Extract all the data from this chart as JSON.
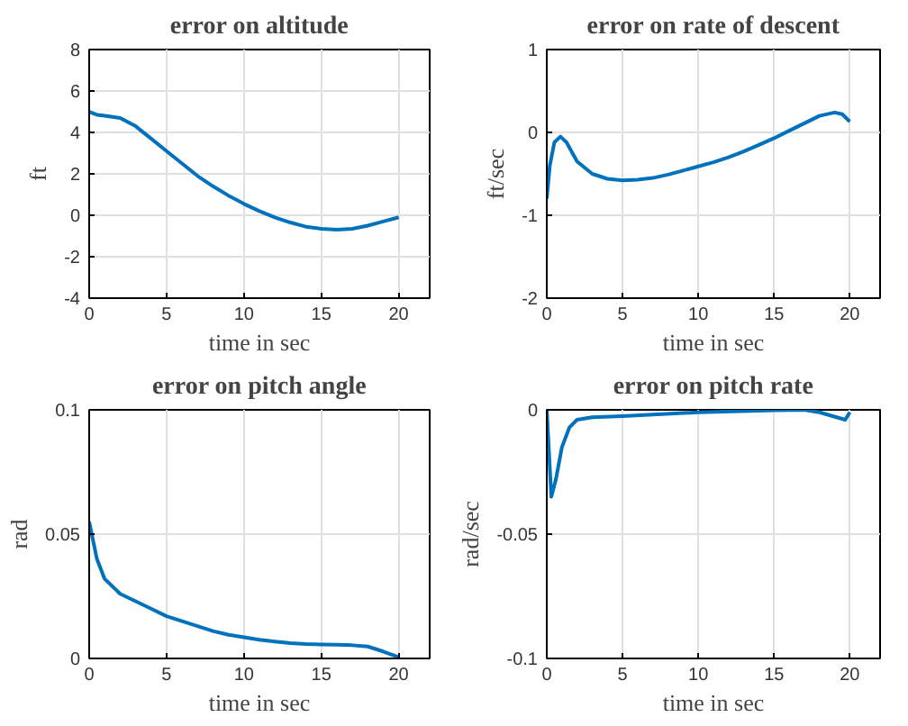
{
  "chart_data": [
    {
      "type": "line",
      "title": "error on altitude",
      "xlabel": "time in sec",
      "ylabel": "ft",
      "xlim": [
        0,
        22
      ],
      "xticks": [
        0,
        5,
        10,
        15,
        20
      ],
      "ylim": [
        -4,
        8
      ],
      "yticks": [
        -4,
        -2,
        0,
        2,
        4,
        6,
        8
      ],
      "grid": true,
      "x": [
        0,
        0.5,
        1,
        2,
        3,
        4,
        5,
        6,
        7,
        8,
        9,
        10,
        11,
        12,
        13,
        14,
        15,
        16,
        17,
        18,
        19,
        20
      ],
      "series": [
        {
          "color": "#0072bd",
          "values": [
            5,
            4.85,
            4.8,
            4.7,
            4.3,
            3.7,
            3.1,
            2.5,
            1.9,
            1.4,
            0.95,
            0.55,
            0.2,
            -0.1,
            -0.35,
            -0.55,
            -0.65,
            -0.7,
            -0.65,
            -0.5,
            -0.3,
            -0.1
          ]
        }
      ]
    },
    {
      "type": "line",
      "title": "error on rate of descent",
      "xlabel": "time in sec",
      "ylabel": "ft/sec",
      "xlim": [
        0,
        22
      ],
      "xticks": [
        0,
        5,
        10,
        15,
        20
      ],
      "ylim": [
        -2,
        1
      ],
      "yticks": [
        -2,
        -1,
        0,
        1
      ],
      "grid": true,
      "x": [
        0,
        0.2,
        0.5,
        0.9,
        1.3,
        2,
        3,
        4,
        5,
        6,
        7,
        8,
        9,
        10,
        11,
        12,
        13,
        14,
        15,
        16,
        17,
        18,
        19,
        19.5,
        20
      ],
      "series": [
        {
          "color": "#0072bd",
          "values": [
            -0.8,
            -0.4,
            -0.12,
            -0.05,
            -0.12,
            -0.35,
            -0.5,
            -0.56,
            -0.58,
            -0.57,
            -0.55,
            -0.51,
            -0.46,
            -0.41,
            -0.36,
            -0.3,
            -0.23,
            -0.15,
            -0.07,
            0.02,
            0.11,
            0.2,
            0.24,
            0.22,
            0.13
          ]
        }
      ]
    },
    {
      "type": "line",
      "title": "error on pitch angle",
      "xlabel": "time in sec",
      "ylabel": "rad",
      "xlim": [
        0,
        22
      ],
      "xticks": [
        0,
        5,
        10,
        15,
        20
      ],
      "ylim": [
        0,
        0.1
      ],
      "yticks": [
        0,
        0.05,
        0.1
      ],
      "grid": true,
      "x": [
        0,
        0.5,
        1,
        2,
        3,
        4,
        5,
        6,
        7,
        8,
        9,
        10,
        11,
        12,
        13,
        14,
        15,
        16,
        17,
        18,
        19,
        20
      ],
      "series": [
        {
          "color": "#0072bd",
          "values": [
            0.055,
            0.04,
            0.032,
            0.026,
            0.023,
            0.02,
            0.017,
            0.015,
            0.013,
            0.011,
            0.0095,
            0.0085,
            0.0075,
            0.0068,
            0.0062,
            0.0058,
            0.0056,
            0.0055,
            0.0053,
            0.0048,
            0.0028,
            0.0005
          ]
        }
      ]
    },
    {
      "type": "line",
      "title": "error on pitch rate",
      "xlabel": "time in sec",
      "ylabel": "rad/sec",
      "xlim": [
        0,
        22
      ],
      "xticks": [
        0,
        5,
        10,
        15,
        20
      ],
      "ylim": [
        -0.1,
        0
      ],
      "yticks": [
        -0.1,
        -0.05,
        0
      ],
      "grid": true,
      "x": [
        0,
        0.3,
        0.6,
        1,
        1.5,
        2,
        3,
        5,
        10,
        15,
        17,
        18,
        19.7,
        20
      ],
      "series": [
        {
          "color": "#0072bd",
          "values": [
            0,
            -0.035,
            -0.028,
            -0.015,
            -0.007,
            -0.004,
            -0.003,
            -0.0025,
            -0.001,
            -0.0002,
            0,
            -0.001,
            -0.004,
            -0.001
          ]
        }
      ]
    }
  ]
}
